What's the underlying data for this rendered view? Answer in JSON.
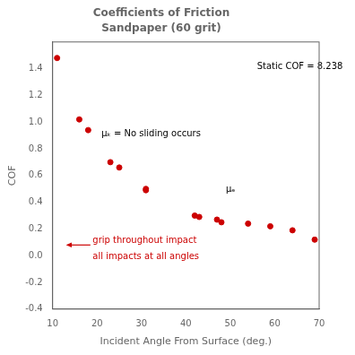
{
  "chart_data": {
    "type": "scatter",
    "title": "Coefficients of Friction",
    "subtitle": "Sandpaper (60 grit)",
    "xlabel": "Incident Angle From Surface (deg.)",
    "ylabel": "COF",
    "x": [
      11,
      16,
      18,
      23,
      25,
      31,
      31,
      42,
      43,
      47,
      48,
      54,
      59,
      64,
      69
    ],
    "values": [
      1.48,
      1.02,
      0.94,
      0.7,
      0.66,
      0.5,
      0.49,
      0.3,
      0.29,
      0.27,
      0.25,
      0.24,
      0.22,
      0.19,
      0.12
    ],
    "color": "#cc0000",
    "xlim": [
      10,
      70
    ],
    "ylim": [
      -0.4,
      1.6
    ],
    "xticks": [
      10,
      20,
      30,
      40,
      50,
      60,
      70
    ],
    "yticks": [
      -0.4,
      -0.2,
      {
        "value": 0,
        "label": "0.0"
      },
      0.2,
      0.4,
      0.6,
      0.8,
      {
        "value": 1,
        "label": "1.0"
      },
      1.2,
      1.4
    ],
    "grid": false,
    "annotations": [
      {
        "text": "Static COF = 8.238",
        "x": 56,
        "y": 1.38,
        "color": "#000000"
      },
      {
        "text": "μₖ = No sliding occurs",
        "x": 21,
        "y": 0.88,
        "color": "#000000"
      },
      {
        "text": "μₑ",
        "x": 49,
        "y": 0.46,
        "color": "#000000"
      },
      {
        "text": "grip throughout impact",
        "x": 19,
        "y": 0.08,
        "color": "#cc0000"
      },
      {
        "text": "all impacts at all angles",
        "x": 19,
        "y": -0.04,
        "color": "#cc0000"
      }
    ],
    "arrows": [
      {
        "x": [
          18.5,
          13
        ],
        "y": [
          0.08,
          0.08
        ],
        "color": "#cc0000"
      }
    ]
  }
}
